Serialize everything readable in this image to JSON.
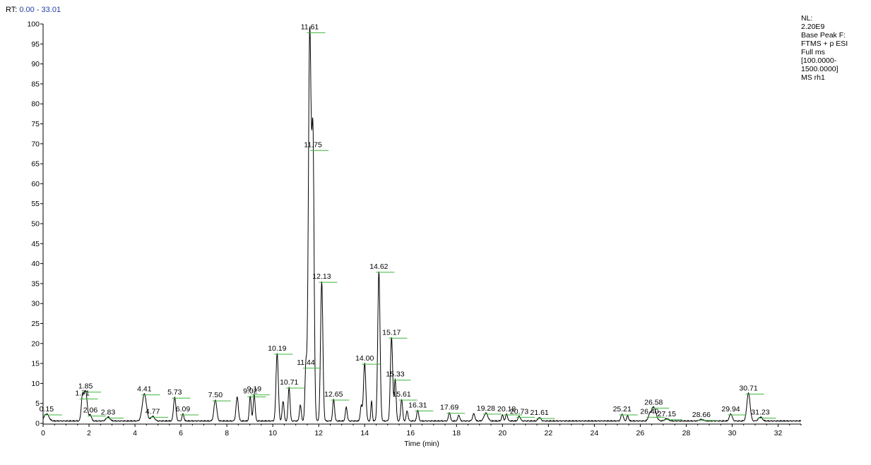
{
  "header": {
    "rt_label": "RT:",
    "rt_range": "0.00 - 33.01"
  },
  "info_box": {
    "lines": [
      "NL:",
      "2.20E9",
      "Base Peak F:",
      "FTMS + p ESI",
      "Full ms",
      "[100.0000-",
      "1500.0000]",
      "MS rh1"
    ]
  },
  "colors": {
    "trace": "#000000",
    "peak_marker": "#3cb43c",
    "rt_value": "#1f3f9f"
  },
  "chart_data": {
    "type": "line",
    "title": "",
    "xlabel": "Time (min)",
    "ylabel": "",
    "xlim": [
      0,
      33
    ],
    "ylim": [
      0,
      100
    ],
    "x_ticks": [
      0,
      2,
      4,
      6,
      8,
      10,
      12,
      14,
      16,
      18,
      20,
      22,
      24,
      26,
      28,
      30,
      32
    ],
    "y_ticks": [
      0,
      5,
      10,
      15,
      20,
      25,
      30,
      35,
      40,
      45,
      50,
      55,
      60,
      65,
      70,
      75,
      80,
      85,
      90,
      95,
      100
    ],
    "grid": false,
    "baseline": 0.5,
    "peaks": [
      {
        "rt": 0.15,
        "h": 1.8,
        "w": 0.1,
        "label": "0.15"
      },
      {
        "rt": 1.71,
        "h": 5.8,
        "w": 0.05,
        "label": "1.71"
      },
      {
        "rt": 1.85,
        "h": 7.5,
        "w": 0.07,
        "label": "1.85"
      },
      {
        "rt": 2.06,
        "h": 1.5,
        "w": 0.05,
        "label": "2.06"
      },
      {
        "rt": 2.83,
        "h": 1.0,
        "w": 0.08,
        "label": "2.83"
      },
      {
        "rt": 4.41,
        "h": 6.8,
        "w": 0.09,
        "label": "4.41"
      },
      {
        "rt": 4.77,
        "h": 1.2,
        "w": 0.08,
        "label": "4.77"
      },
      {
        "rt": 5.73,
        "h": 6.0,
        "w": 0.05,
        "label": "5.73"
      },
      {
        "rt": 6.09,
        "h": 1.8,
        "w": 0.04,
        "label": "6.09"
      },
      {
        "rt": 7.5,
        "h": 5.3,
        "w": 0.06,
        "label": "7.50"
      },
      {
        "rt": 8.45,
        "h": 6.0,
        "w": 0.05,
        "label": ""
      },
      {
        "rt": 9.02,
        "h": 6.3,
        "w": 0.04,
        "label": "9.02"
      },
      {
        "rt": 9.19,
        "h": 6.8,
        "w": 0.04,
        "label": "9.19"
      },
      {
        "rt": 10.19,
        "h": 17.0,
        "w": 0.05,
        "label": "10.19"
      },
      {
        "rt": 10.45,
        "h": 5.0,
        "w": 0.04,
        "label": ""
      },
      {
        "rt": 10.71,
        "h": 8.5,
        "w": 0.04,
        "label": "10.71"
      },
      {
        "rt": 11.2,
        "h": 4.0,
        "w": 0.04,
        "label": ""
      },
      {
        "rt": 11.44,
        "h": 13.5,
        "w": 0.04,
        "label": "11.44"
      },
      {
        "rt": 11.61,
        "h": 97.5,
        "w": 0.06,
        "label": "11.61"
      },
      {
        "rt": 11.75,
        "h": 68.0,
        "w": 0.05,
        "label": "11.75"
      },
      {
        "rt": 12.13,
        "h": 35.0,
        "w": 0.05,
        "label": "12.13"
      },
      {
        "rt": 12.65,
        "h": 5.5,
        "w": 0.04,
        "label": "12.65"
      },
      {
        "rt": 13.2,
        "h": 3.5,
        "w": 0.04,
        "label": ""
      },
      {
        "rt": 13.85,
        "h": 3.8,
        "w": 0.04,
        "label": ""
      },
      {
        "rt": 14.0,
        "h": 14.5,
        "w": 0.05,
        "label": "14.00"
      },
      {
        "rt": 14.3,
        "h": 5.0,
        "w": 0.03,
        "label": ""
      },
      {
        "rt": 14.62,
        "h": 37.5,
        "w": 0.05,
        "label": "14.62"
      },
      {
        "rt": 15.17,
        "h": 21.0,
        "w": 0.05,
        "label": "15.17"
      },
      {
        "rt": 15.33,
        "h": 10.5,
        "w": 0.04,
        "label": "15.33"
      },
      {
        "rt": 15.61,
        "h": 5.5,
        "w": 0.04,
        "label": "15.61"
      },
      {
        "rt": 15.85,
        "h": 2.5,
        "w": 0.04,
        "label": ""
      },
      {
        "rt": 16.31,
        "h": 2.8,
        "w": 0.04,
        "label": "16.31"
      },
      {
        "rt": 17.69,
        "h": 2.2,
        "w": 0.04,
        "label": "17.69"
      },
      {
        "rt": 18.1,
        "h": 1.5,
        "w": 0.04,
        "label": ""
      },
      {
        "rt": 18.75,
        "h": 1.8,
        "w": 0.05,
        "label": ""
      },
      {
        "rt": 19.28,
        "h": 2.0,
        "w": 0.08,
        "label": "19.28"
      },
      {
        "rt": 20.0,
        "h": 1.5,
        "w": 0.04,
        "label": ""
      },
      {
        "rt": 20.18,
        "h": 1.8,
        "w": 0.04,
        "label": "20.18"
      },
      {
        "rt": 20.73,
        "h": 1.2,
        "w": 0.05,
        "label": "20.73"
      },
      {
        "rt": 21.61,
        "h": 0.9,
        "w": 0.06,
        "label": "21.61"
      },
      {
        "rt": 25.21,
        "h": 1.8,
        "w": 0.05,
        "label": "25.21"
      },
      {
        "rt": 25.45,
        "h": 1.3,
        "w": 0.04,
        "label": ""
      },
      {
        "rt": 26.4,
        "h": 1.2,
        "w": 0.06,
        "label": "26.40"
      },
      {
        "rt": 26.58,
        "h": 3.5,
        "w": 0.1,
        "label": "26.58"
      },
      {
        "rt": 27.15,
        "h": 0.6,
        "w": 0.08,
        "label": "27.15"
      },
      {
        "rt": 28.66,
        "h": 0.4,
        "w": 0.08,
        "label": "28.66"
      },
      {
        "rt": 29.94,
        "h": 1.8,
        "w": 0.06,
        "label": "29.94"
      },
      {
        "rt": 30.71,
        "h": 7.0,
        "w": 0.07,
        "label": "30.71"
      },
      {
        "rt": 31.23,
        "h": 1.0,
        "w": 0.08,
        "label": "31.23"
      }
    ]
  }
}
